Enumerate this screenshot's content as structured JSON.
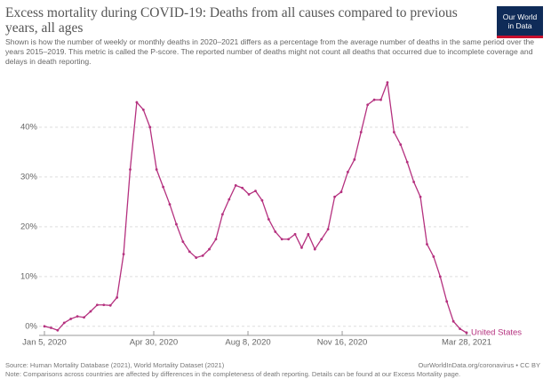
{
  "chart_data": {
    "type": "line",
    "title": "Excess mortality during COVID-19: Deaths from all causes compared to previous years, all ages",
    "subtitle": "Shown is how the number of weekly or monthly deaths in 2020–2021 differs as a percentage from the average number of deaths in the same period over the years 2015–2019. This metric is called the P-score. The reported number of deaths might not count all deaths that occurred due to incomplete coverage and delays in death reporting.",
    "logo": [
      "Our World",
      "in Data"
    ],
    "source": "Source: Human Mortality Database (2021), World Mortality Dataset (2021)",
    "credit": "OurWorldInData.org/coronavirus • CC BY",
    "note": "Note: Comparisons across countries are affected by differences in the completeness of death reporting. Details can be found at our Excess Mortality page.",
    "x": [
      "2020-01-05",
      "2020-01-12",
      "2020-01-19",
      "2020-01-26",
      "2020-02-02",
      "2020-02-09",
      "2020-02-16",
      "2020-02-23",
      "2020-03-01",
      "2020-03-08",
      "2020-03-15",
      "2020-03-22",
      "2020-03-29",
      "2020-04-05",
      "2020-04-12",
      "2020-04-19",
      "2020-04-26",
      "2020-05-03",
      "2020-05-10",
      "2020-05-17",
      "2020-05-24",
      "2020-05-31",
      "2020-06-07",
      "2020-06-14",
      "2020-06-21",
      "2020-06-28",
      "2020-07-05",
      "2020-07-12",
      "2020-07-19",
      "2020-07-26",
      "2020-08-02",
      "2020-08-09",
      "2020-08-16",
      "2020-08-23",
      "2020-08-30",
      "2020-09-06",
      "2020-09-13",
      "2020-09-20",
      "2020-09-27",
      "2020-10-04",
      "2020-10-11",
      "2020-10-18",
      "2020-10-25",
      "2020-11-01",
      "2020-11-08",
      "2020-11-15",
      "2020-11-22",
      "2020-11-29",
      "2020-12-06",
      "2020-12-13",
      "2020-12-20",
      "2020-12-27",
      "2021-01-03",
      "2021-01-10",
      "2021-01-17",
      "2021-01-24",
      "2021-01-31",
      "2021-02-07",
      "2021-02-14",
      "2021-02-21",
      "2021-02-28",
      "2021-03-07",
      "2021-03-14",
      "2021-03-21",
      "2021-03-28"
    ],
    "series": [
      {
        "name": "United States",
        "color": "#b5317f",
        "values": [
          0,
          -0.3,
          -0.8,
          0.7,
          1.5,
          2,
          1.8,
          3,
          4.3,
          4.3,
          4.2,
          5.8,
          14.5,
          31.5,
          45,
          43.5,
          40,
          31.5,
          28,
          24.5,
          20.5,
          17,
          15,
          13.8,
          14.2,
          15.5,
          17.5,
          22.5,
          25.5,
          28.3,
          27.8,
          26.5,
          27.2,
          25.3,
          21.5,
          19,
          17.5,
          17.5,
          18.5,
          15.8,
          18.5,
          15.5,
          17.5,
          19.5,
          26,
          27,
          31,
          33.5,
          39,
          44.5,
          45.5,
          45.5,
          49,
          39,
          36.5,
          33,
          29,
          26,
          16.5,
          14,
          10,
          5,
          1,
          -0.5,
          -1.3
        ]
      }
    ],
    "xlim": [
      "2020-01-05",
      "2021-03-28"
    ],
    "xticks": [
      {
        "value": "2020-01-05",
        "label": "Jan 5, 2020"
      },
      {
        "value": "2020-04-30",
        "label": "Apr 30, 2020"
      },
      {
        "value": "2020-08-08",
        "label": "Aug 8, 2020"
      },
      {
        "value": "2020-11-16",
        "label": "Nov 16, 2020"
      },
      {
        "value": "2021-03-28",
        "label": "Mar 28, 2021"
      }
    ],
    "ylim": [
      -2,
      50
    ],
    "yticks": [
      {
        "value": 0,
        "label": "0%"
      },
      {
        "value": 10,
        "label": "10%"
      },
      {
        "value": 20,
        "label": "20%"
      },
      {
        "value": 30,
        "label": "30%"
      },
      {
        "value": 40,
        "label": "40%"
      }
    ],
    "grid": true
  }
}
